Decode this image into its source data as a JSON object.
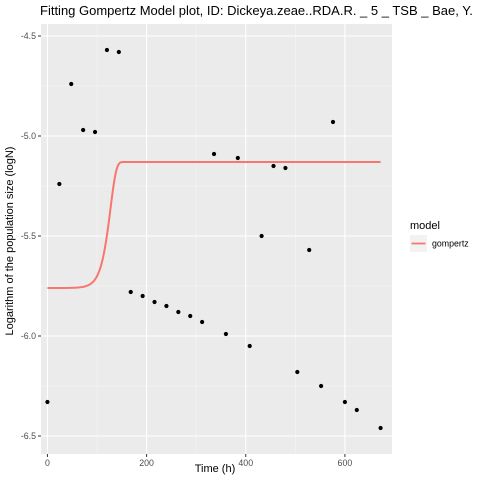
{
  "chart_data": {
    "type": "scatter",
    "title": "Fitting Gompertz Model plot, ID: Dickeya.zeae..RDA.R. _ 5 _ TSB _ Bae, Y.",
    "xlabel": "Time (h)",
    "ylabel": "Logarithm of the population size (logN)",
    "xlim": [
      -13,
      695
    ],
    "ylim": [
      -6.59,
      -4.44
    ],
    "x_ticks": [
      0,
      200,
      400,
      600
    ],
    "x_tick_labels": [
      "0",
      "200",
      "400",
      "600"
    ],
    "y_ticks": [
      -6.5,
      -6.0,
      -5.5,
      -5.0,
      -4.5
    ],
    "y_tick_labels": [
      "-6.5",
      "-6.0",
      "-5.5",
      "-5.0",
      "-4.5"
    ],
    "grid": true,
    "legend": {
      "title": "model",
      "position": "right",
      "entries": [
        {
          "label": "gompertz",
          "color": "#F8766D"
        }
      ]
    },
    "series": [
      {
        "kind": "points",
        "color": "#000000",
        "x": [
          0,
          24,
          48,
          72,
          96,
          120,
          144,
          168,
          192,
          216,
          240,
          264,
          288,
          312,
          336,
          360,
          384,
          408,
          432,
          456,
          480,
          504,
          528,
          552,
          576,
          600,
          624,
          672
        ],
        "y": [
          -6.33,
          -5.24,
          -4.74,
          -4.97,
          -4.98,
          -4.57,
          -4.58,
          -5.78,
          -5.8,
          -5.83,
          -5.85,
          -5.88,
          -5.9,
          -5.93,
          -5.09,
          -5.99,
          -5.11,
          -6.05,
          -5.5,
          -5.15,
          -5.16,
          -6.18,
          -5.57,
          -6.25,
          -4.93,
          -6.33,
          -6.37,
          -6.46
        ]
      },
      {
        "name": "gompertz",
        "kind": "line",
        "color": "#F8766D",
        "model": {
          "y0": -5.13,
          "A": -0.63,
          "mu": 0.0197,
          "lambda": 139
        },
        "x_range": [
          0,
          672
        ]
      }
    ]
  }
}
